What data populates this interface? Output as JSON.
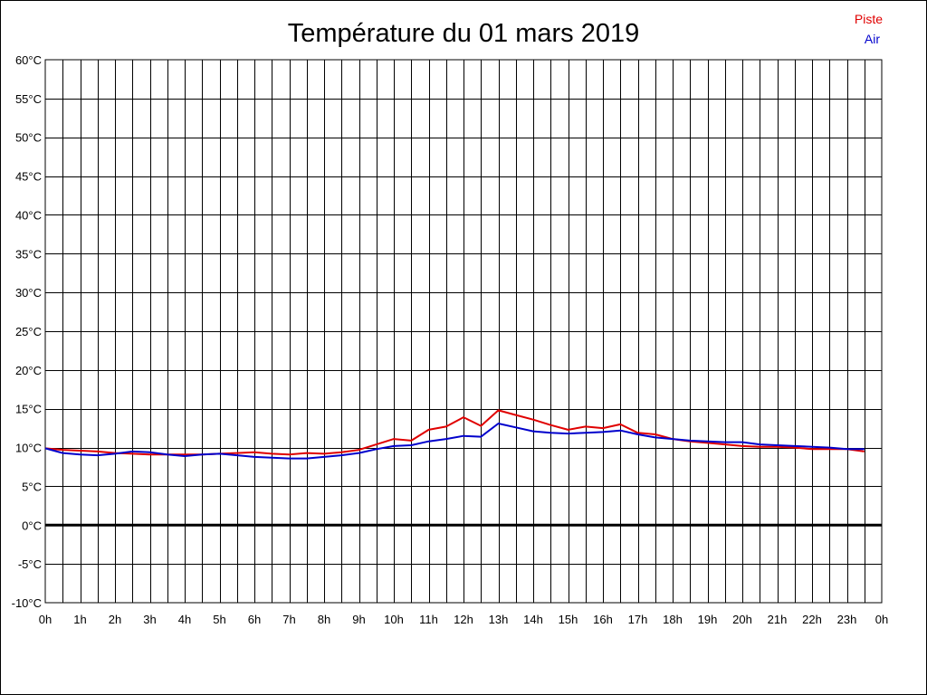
{
  "chart_data": {
    "type": "line",
    "title": "Température du 01 mars 2019",
    "xlabel": "",
    "ylabel": "",
    "ylim": [
      -10,
      60
    ],
    "y_ticks": [
      60,
      55,
      50,
      45,
      40,
      35,
      30,
      25,
      20,
      15,
      10,
      5,
      0,
      -5,
      -10
    ],
    "y_tick_labels": [
      "60°C",
      "55°C",
      "50°C",
      "45°C",
      "40°C",
      "35°C",
      "30°C",
      "25°C",
      "20°C",
      "15°C",
      "10°C",
      "5°C",
      "0°C",
      "-5°C",
      "-10°C"
    ],
    "xlim": [
      0,
      24
    ],
    "x_tick_labels": [
      "0h",
      "1h",
      "2h",
      "3h",
      "4h",
      "5h",
      "6h",
      "7h",
      "8h",
      "9h",
      "10h",
      "11h",
      "12h",
      "13h",
      "14h",
      "15h",
      "16h",
      "17h",
      "18h",
      "19h",
      "20h",
      "21h",
      "22h",
      "23h",
      "0h"
    ],
    "grid": true,
    "zero_line": true,
    "legend_position": "top-right",
    "x": [
      0,
      0.5,
      1,
      1.5,
      2,
      2.5,
      3,
      3.5,
      4,
      4.5,
      5,
      5.5,
      6,
      6.5,
      7,
      7.5,
      8,
      8.5,
      9,
      9.5,
      10,
      10.5,
      11,
      11.5,
      12,
      12.5,
      13,
      13.5,
      14,
      14.5,
      15,
      15.5,
      16,
      16.5,
      17,
      17.5,
      18,
      18.5,
      19,
      19.5,
      20,
      20.5,
      21,
      21.5,
      22,
      22.5,
      23,
      23.5
    ],
    "series": [
      {
        "name": "Piste",
        "color": "#e00000",
        "values": [
          9.9,
          9.7,
          9.6,
          9.5,
          9.3,
          9.2,
          9.1,
          9.1,
          9.1,
          9.1,
          9.2,
          9.3,
          9.4,
          9.2,
          9.1,
          9.3,
          9.2,
          9.4,
          9.7,
          10.4,
          11.1,
          10.9,
          12.3,
          12.7,
          13.9,
          12.8,
          14.8,
          14.2,
          13.6,
          12.9,
          12.3,
          12.7,
          12.5,
          13.0,
          11.9,
          11.7,
          11.1,
          10.8,
          10.6,
          10.4,
          10.2,
          10.1,
          10.1,
          10.0,
          9.8,
          9.8,
          9.8,
          9.5
        ]
      },
      {
        "name": "Air",
        "color": "#0000cc",
        "values": [
          9.9,
          9.3,
          9.1,
          9.0,
          9.2,
          9.5,
          9.4,
          9.1,
          8.9,
          9.1,
          9.2,
          9.0,
          8.8,
          8.7,
          8.6,
          8.6,
          8.8,
          9.0,
          9.3,
          9.8,
          10.2,
          10.3,
          10.8,
          11.1,
          11.5,
          11.4,
          13.1,
          12.6,
          12.1,
          11.9,
          11.8,
          11.9,
          12.0,
          12.2,
          11.7,
          11.3,
          11.1,
          10.9,
          10.8,
          10.7,
          10.7,
          10.4,
          10.3,
          10.2,
          10.1,
          10.0,
          9.8,
          9.8
        ]
      }
    ]
  }
}
